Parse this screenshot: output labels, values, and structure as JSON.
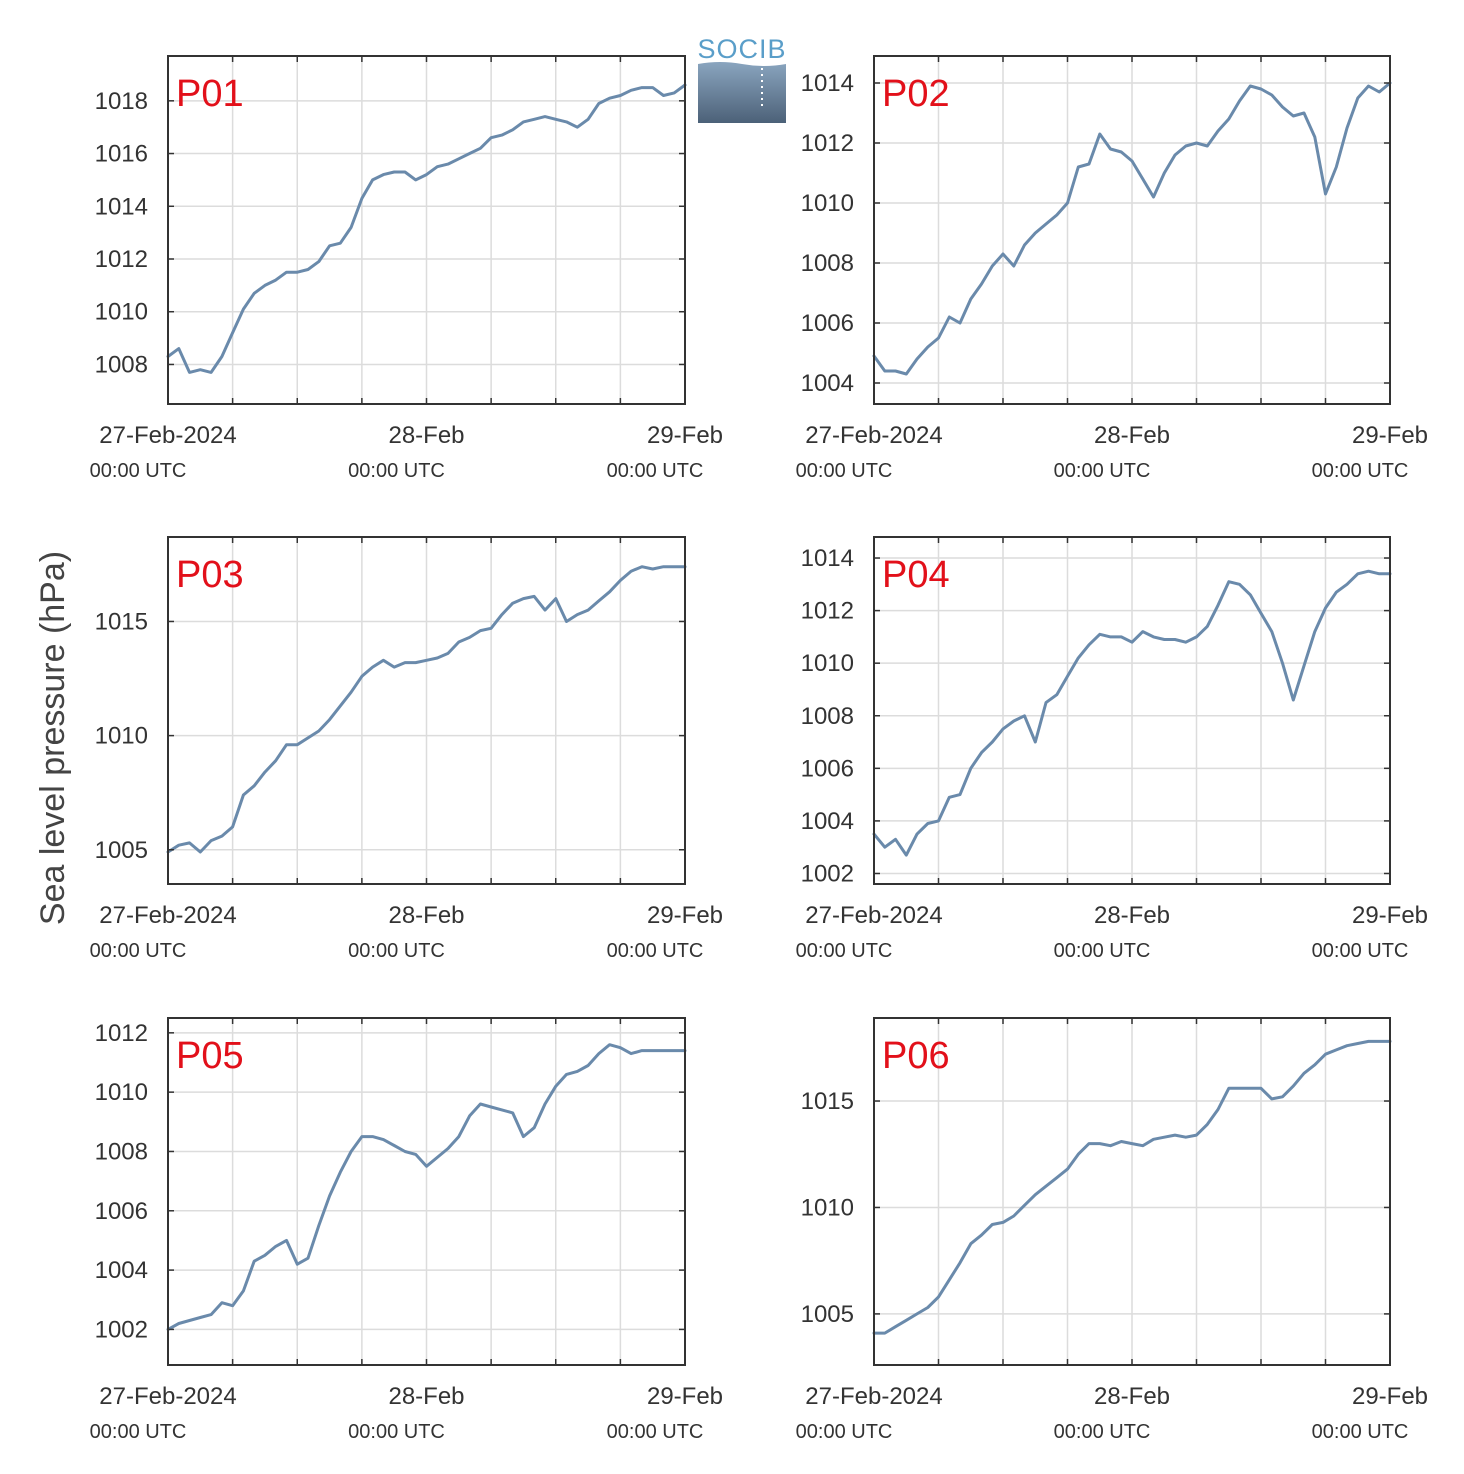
{
  "figure": {
    "ylabel": "Sea level pressure (hPa)",
    "logo_text": "SOCIB",
    "colors": {
      "line": "#6a8aab",
      "label": "#e2101a",
      "grid": "#dcdcdc",
      "axis": "#333333",
      "logo_text": "#5a9ec9",
      "logo_top": "#8aa5bf",
      "logo_bottom": "#4c6178"
    }
  },
  "chart_data": [
    {
      "type": "line",
      "label": "P01",
      "ylim": [
        1006.5,
        1019.7
      ],
      "yticks": [
        1008,
        1010,
        1012,
        1014,
        1016,
        1018
      ],
      "xlim": [
        0,
        48
      ],
      "xticks": [
        0,
        24,
        48
      ],
      "xtick_labels": [
        [
          "27-Feb-2024",
          "00:00 UTC"
        ],
        [
          "28-Feb",
          "00:00 UTC"
        ],
        [
          "29-Feb",
          "00:00 UTC"
        ]
      ],
      "x": [
        0,
        1,
        2,
        3,
        4,
        5,
        6,
        7,
        8,
        9,
        10,
        11,
        12,
        13,
        14,
        15,
        16,
        17,
        18,
        19,
        20,
        21,
        22,
        23,
        24,
        25,
        26,
        27,
        28,
        29,
        30,
        31,
        32,
        33,
        34,
        35,
        36,
        37,
        38,
        39,
        40,
        41,
        42,
        43,
        44,
        45,
        46,
        47,
        48
      ],
      "y": [
        1008.3,
        1008.6,
        1007.7,
        1007.8,
        1007.7,
        1008.3,
        1009.2,
        1010.1,
        1010.7,
        1011.0,
        1011.2,
        1011.5,
        1011.5,
        1011.6,
        1011.9,
        1012.5,
        1012.6,
        1013.2,
        1014.3,
        1015.0,
        1015.2,
        1015.3,
        1015.3,
        1015.0,
        1015.2,
        1015.5,
        1015.6,
        1015.8,
        1016.0,
        1016.2,
        1016.6,
        1016.7,
        1016.9,
        1017.2,
        1017.3,
        1017.4,
        1017.3,
        1017.2,
        1017.0,
        1017.3,
        1017.9,
        1018.1,
        1018.2,
        1018.4,
        1018.5,
        1018.5,
        1018.2,
        1018.3,
        1018.6
      ]
    },
    {
      "type": "line",
      "label": "P02",
      "ylim": [
        1003.3,
        1014.9
      ],
      "yticks": [
        1004,
        1006,
        1008,
        1010,
        1012,
        1014
      ],
      "xlim": [
        0,
        48
      ],
      "xticks": [
        0,
        24,
        48
      ],
      "xtick_labels": [
        [
          "27-Feb-2024",
          "00:00 UTC"
        ],
        [
          "28-Feb",
          "00:00 UTC"
        ],
        [
          "29-Feb",
          "00:00 UTC"
        ]
      ],
      "x": [
        0,
        1,
        2,
        3,
        4,
        5,
        6,
        7,
        8,
        9,
        10,
        11,
        12,
        13,
        14,
        15,
        16,
        17,
        18,
        19,
        20,
        21,
        22,
        23,
        24,
        25,
        26,
        27,
        28,
        29,
        30,
        31,
        32,
        33,
        34,
        35,
        36,
        37,
        38,
        39,
        40,
        41,
        42,
        43,
        44,
        45,
        46,
        47,
        48
      ],
      "y": [
        1004.9,
        1004.4,
        1004.4,
        1004.3,
        1004.8,
        1005.2,
        1005.5,
        1006.2,
        1006.0,
        1006.8,
        1007.3,
        1007.9,
        1008.3,
        1007.9,
        1008.6,
        1009.0,
        1009.3,
        1009.6,
        1010.0,
        1011.2,
        1011.3,
        1012.3,
        1011.8,
        1011.7,
        1011.4,
        1010.8,
        1010.2,
        1011.0,
        1011.6,
        1011.9,
        1012.0,
        1011.9,
        1012.4,
        1012.8,
        1013.4,
        1013.9,
        1013.8,
        1013.6,
        1013.2,
        1012.9,
        1013.0,
        1012.2,
        1010.3,
        1011.2,
        1012.5,
        1013.5,
        1013.9,
        1013.7,
        1014.0
      ]
    },
    {
      "type": "line",
      "label": "P03",
      "ylim": [
        1003.5,
        1018.7
      ],
      "yticks": [
        1005,
        1010,
        1015
      ],
      "xlim": [
        0,
        48
      ],
      "xticks": [
        0,
        24,
        48
      ],
      "xtick_labels": [
        [
          "27-Feb-2024",
          "00:00 UTC"
        ],
        [
          "28-Feb",
          "00:00 UTC"
        ],
        [
          "29-Feb",
          "00:00 UTC"
        ]
      ],
      "x": [
        0,
        1,
        2,
        3,
        4,
        5,
        6,
        7,
        8,
        9,
        10,
        11,
        12,
        13,
        14,
        15,
        16,
        17,
        18,
        19,
        20,
        21,
        22,
        23,
        24,
        25,
        26,
        27,
        28,
        29,
        30,
        31,
        32,
        33,
        34,
        35,
        36,
        37,
        38,
        39,
        40,
        41,
        42,
        43,
        44,
        45,
        46,
        47,
        48
      ],
      "y": [
        1004.9,
        1005.2,
        1005.3,
        1004.9,
        1005.4,
        1005.6,
        1006.0,
        1007.4,
        1007.8,
        1008.4,
        1008.9,
        1009.6,
        1009.6,
        1009.9,
        1010.2,
        1010.7,
        1011.3,
        1011.9,
        1012.6,
        1013.0,
        1013.3,
        1013.0,
        1013.2,
        1013.2,
        1013.3,
        1013.4,
        1013.6,
        1014.1,
        1014.3,
        1014.6,
        1014.7,
        1015.3,
        1015.8,
        1016.0,
        1016.1,
        1015.5,
        1016.0,
        1015.0,
        1015.3,
        1015.5,
        1015.9,
        1016.3,
        1016.8,
        1017.2,
        1017.4,
        1017.3,
        1017.4,
        1017.4,
        1017.4
      ]
    },
    {
      "type": "line",
      "label": "P04",
      "ylim": [
        1001.6,
        1014.8
      ],
      "yticks": [
        1002,
        1004,
        1006,
        1008,
        1010,
        1012,
        1014
      ],
      "xlim": [
        0,
        48
      ],
      "xticks": [
        0,
        24,
        48
      ],
      "xtick_labels": [
        [
          "27-Feb-2024",
          "00:00 UTC"
        ],
        [
          "28-Feb",
          "00:00 UTC"
        ],
        [
          "29-Feb",
          "00:00 UTC"
        ]
      ],
      "x": [
        0,
        1,
        2,
        3,
        4,
        5,
        6,
        7,
        8,
        9,
        10,
        11,
        12,
        13,
        14,
        15,
        16,
        17,
        18,
        19,
        20,
        21,
        22,
        23,
        24,
        25,
        26,
        27,
        28,
        29,
        30,
        31,
        32,
        33,
        34,
        35,
        36,
        37,
        38,
        39,
        40,
        41,
        42,
        43,
        44,
        45,
        46,
        47,
        48
      ],
      "y": [
        1003.5,
        1003.0,
        1003.3,
        1002.7,
        1003.5,
        1003.9,
        1004.0,
        1004.9,
        1005.0,
        1006.0,
        1006.6,
        1007.0,
        1007.5,
        1007.8,
        1008.0,
        1007.0,
        1008.5,
        1008.8,
        1009.5,
        1010.2,
        1010.7,
        1011.1,
        1011.0,
        1011.0,
        1010.8,
        1011.2,
        1011.0,
        1010.9,
        1010.9,
        1010.8,
        1011.0,
        1011.4,
        1012.2,
        1013.1,
        1013.0,
        1012.6,
        1011.9,
        1011.2,
        1010.0,
        1008.6,
        1009.9,
        1011.2,
        1012.1,
        1012.7,
        1013.0,
        1013.4,
        1013.5,
        1013.4,
        1013.4
      ]
    },
    {
      "type": "line",
      "label": "P05",
      "ylim": [
        1000.8,
        1012.5
      ],
      "yticks": [
        1002,
        1004,
        1006,
        1008,
        1010,
        1012
      ],
      "xlim": [
        0,
        48
      ],
      "xticks": [
        0,
        24,
        48
      ],
      "xtick_labels": [
        [
          "27-Feb-2024",
          "00:00 UTC"
        ],
        [
          "28-Feb",
          "00:00 UTC"
        ],
        [
          "29-Feb",
          "00:00 UTC"
        ]
      ],
      "x": [
        0,
        1,
        2,
        3,
        4,
        5,
        6,
        7,
        8,
        9,
        10,
        11,
        12,
        13,
        14,
        15,
        16,
        17,
        18,
        19,
        20,
        21,
        22,
        23,
        24,
        25,
        26,
        27,
        28,
        29,
        30,
        31,
        32,
        33,
        34,
        35,
        36,
        37,
        38,
        39,
        40,
        41,
        42,
        43,
        44,
        45,
        46,
        47,
        48
      ],
      "y": [
        1002.0,
        1002.2,
        1002.3,
        1002.4,
        1002.5,
        1002.9,
        1002.8,
        1003.3,
        1004.3,
        1004.5,
        1004.8,
        1005.0,
        1004.2,
        1004.4,
        1005.5,
        1006.5,
        1007.3,
        1008.0,
        1008.5,
        1008.5,
        1008.4,
        1008.2,
        1008.0,
        1007.9,
        1007.5,
        1007.8,
        1008.1,
        1008.5,
        1009.2,
        1009.6,
        1009.5,
        1009.4,
        1009.3,
        1008.5,
        1008.8,
        1009.6,
        1010.2,
        1010.6,
        1010.7,
        1010.9,
        1011.3,
        1011.6,
        1011.5,
        1011.3,
        1011.4,
        1011.4,
        1011.4,
        1011.4,
        1011.4
      ]
    },
    {
      "type": "line",
      "label": "P06",
      "ylim": [
        1002.6,
        1018.9
      ],
      "yticks": [
        1005,
        1010,
        1015
      ],
      "xlim": [
        0,
        48
      ],
      "xticks": [
        0,
        24,
        48
      ],
      "xtick_labels": [
        [
          "27-Feb-2024",
          "00:00 UTC"
        ],
        [
          "28-Feb",
          "00:00 UTC"
        ],
        [
          "29-Feb",
          "00:00 UTC"
        ]
      ],
      "x": [
        0,
        1,
        2,
        3,
        4,
        5,
        6,
        7,
        8,
        9,
        10,
        11,
        12,
        13,
        14,
        15,
        16,
        17,
        18,
        19,
        20,
        21,
        22,
        23,
        24,
        25,
        26,
        27,
        28,
        29,
        30,
        31,
        32,
        33,
        34,
        35,
        36,
        37,
        38,
        39,
        40,
        41,
        42,
        43,
        44,
        45,
        46,
        47,
        48
      ],
      "y": [
        1004.1,
        1004.1,
        1004.4,
        1004.7,
        1005.0,
        1005.3,
        1005.8,
        1006.6,
        1007.4,
        1008.3,
        1008.7,
        1009.2,
        1009.3,
        1009.6,
        1010.1,
        1010.6,
        1011.0,
        1011.4,
        1011.8,
        1012.5,
        1013.0,
        1013.0,
        1012.9,
        1013.1,
        1013.0,
        1012.9,
        1013.2,
        1013.3,
        1013.4,
        1013.3,
        1013.4,
        1013.9,
        1014.6,
        1015.6,
        1015.6,
        1015.6,
        1015.6,
        1015.1,
        1015.2,
        1015.7,
        1016.3,
        1016.7,
        1017.2,
        1017.4,
        1017.6,
        1017.7,
        1017.8,
        1017.8,
        1017.8
      ]
    }
  ]
}
